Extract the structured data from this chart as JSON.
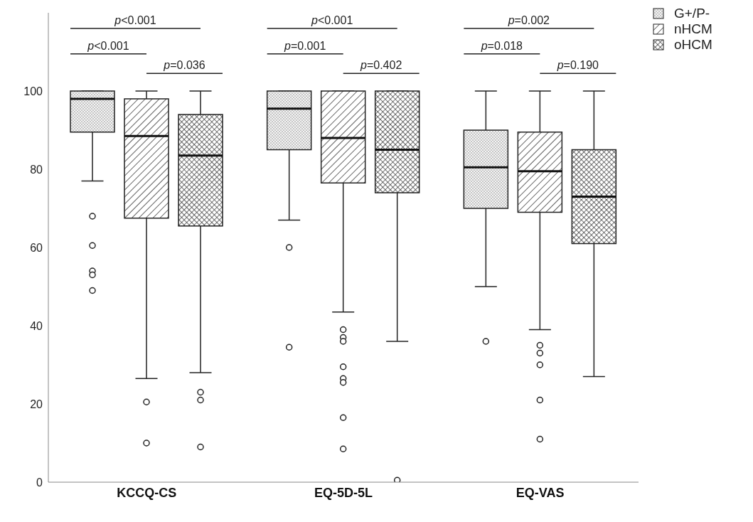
{
  "chart_data": {
    "type": "box",
    "categories": [
      "KCCQ-CS",
      "EQ-5D-5L",
      "EQ-VAS"
    ],
    "series": [
      {
        "name": "G+/P-",
        "color": "#222222",
        "boxes": [
          {
            "low": 77,
            "q1": 89.5,
            "median": 98,
            "q3": 100,
            "high": 100,
            "outliers": [
              68,
              60.5,
              54,
              53,
              49
            ]
          },
          {
            "low": 67,
            "q1": 85,
            "median": 95.5,
            "q3": 100,
            "high": 100,
            "outliers": [
              60,
              34.5
            ]
          },
          {
            "low": 50,
            "q1": 70,
            "median": 80.5,
            "q3": 90,
            "high": 100,
            "outliers": [
              36
            ]
          }
        ]
      },
      {
        "name": "nHCM",
        "color": "#222222",
        "boxes": [
          {
            "low": 26.5,
            "q1": 67.5,
            "median": 88.5,
            "q3": 98,
            "high": 100,
            "outliers": [
              20.5,
              10
            ]
          },
          {
            "low": 43.5,
            "q1": 76.5,
            "median": 88,
            "q3": 100,
            "high": 100,
            "outliers": [
              39,
              37,
              36,
              29.5,
              26.5,
              25.5,
              16.5,
              8.5
            ]
          },
          {
            "low": 39,
            "q1": 69,
            "median": 79.5,
            "q3": 89.5,
            "high": 100,
            "outliers": [
              35,
              33,
              30,
              21,
              11
            ]
          }
        ]
      },
      {
        "name": "oHCM",
        "color": "#222222",
        "boxes": [
          {
            "low": 28,
            "q1": 65.5,
            "median": 83.5,
            "q3": 94,
            "high": 100,
            "outliers": [
              23,
              21,
              9
            ]
          },
          {
            "low": 36,
            "q1": 74,
            "median": 85,
            "q3": 100,
            "high": 100,
            "outliers": [
              0.5
            ]
          },
          {
            "low": 27,
            "q1": 61,
            "median": 73,
            "q3": 85,
            "high": 100
          }
        ]
      }
    ],
    "ylim": [
      0,
      120
    ],
    "yticks": [
      0,
      20,
      40,
      60,
      80,
      100
    ],
    "legend": "top right",
    "marker": "circle",
    "annotations": [
      "p<0.001",
      "p<0.001",
      "p=0.036",
      "p<0.001",
      "p=0.001",
      "p=0.402",
      "p=0.002",
      "p=0.018",
      "p=0.190"
    ]
  }
}
